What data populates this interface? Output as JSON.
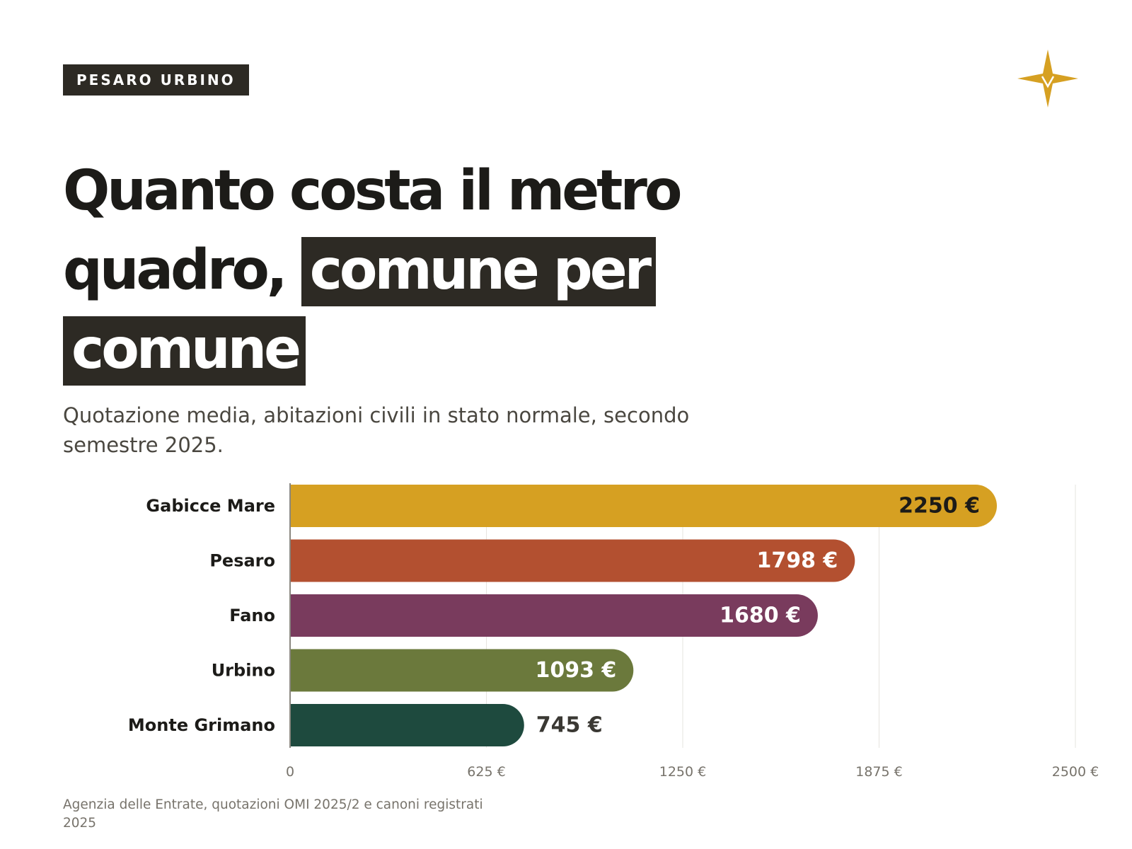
{
  "tag": "PESARO URBINO",
  "title": {
    "part1": "Quanto costa il metro quadro,",
    "highlight": "comune per comune"
  },
  "subtitle": "Quotazione media, abitazioni civili in stato normale, secondo semestre 2025.",
  "source": "Agenzia delle Entrate, quotazioni OMI 2025/2 e canoni registrati 2025",
  "logo_icon": "star-compass-icon",
  "colors": {
    "dark": "#2d2a24",
    "accent": "#d6a022"
  },
  "chart_data": {
    "type": "bar",
    "orientation": "horizontal",
    "categories": [
      "Gabicce Mare",
      "Pesaro",
      "Fano",
      "Urbino",
      "Monte Grimano"
    ],
    "values": [
      2250,
      1798,
      1680,
      1093,
      745
    ],
    "value_labels": [
      "2250 €",
      "1798 €",
      "1680 €",
      "1093 €",
      "745 €"
    ],
    "colors": [
      "#d6a022",
      "#b35030",
      "#793b5d",
      "#6b793c",
      "#1e4a3e"
    ],
    "label_colors": [
      "#1c1b18",
      "#ffffff",
      "#ffffff",
      "#ffffff",
      "#3a3833"
    ],
    "label_inside": [
      true,
      true,
      true,
      true,
      false
    ],
    "xlim": [
      0,
      2500
    ],
    "xticks": [
      0,
      625,
      1250,
      1875,
      2500
    ],
    "xtick_labels": [
      "0",
      "625 €",
      "1250 €",
      "1875 €",
      "2500 €"
    ],
    "grid": true,
    "title": "",
    "xlabel": "",
    "ylabel": ""
  }
}
